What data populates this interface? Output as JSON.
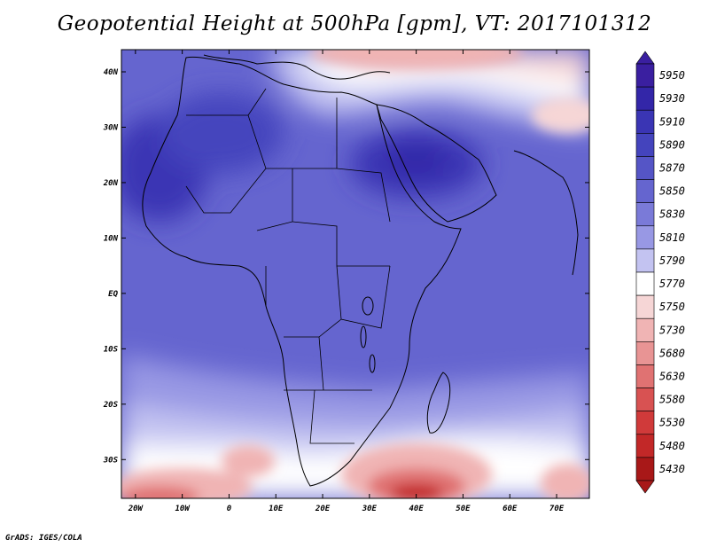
{
  "title": "Geopotential Height at 500hPa [gpm], VT: 2017101312",
  "credit": "GrADS: IGES/COLA",
  "map": {
    "lat_ticks": [
      "40N",
      "30N",
      "20N",
      "10N",
      "EQ",
      "10S",
      "20S",
      "30S"
    ],
    "lon_ticks": [
      "20W",
      "10W",
      "0",
      "10E",
      "20E",
      "30E",
      "40E",
      "50E",
      "60E",
      "70E"
    ],
    "lat_values": [
      40,
      30,
      20,
      10,
      0,
      -10,
      -20,
      -30
    ],
    "lon_values": [
      -20,
      -10,
      0,
      10,
      20,
      30,
      40,
      50,
      60,
      70
    ]
  },
  "colorbar": {
    "levels": [
      "5950",
      "5930",
      "5910",
      "5890",
      "5870",
      "5850",
      "5830",
      "5810",
      "5790",
      "5770",
      "5750",
      "5730",
      "5680",
      "5630",
      "5580",
      "5530",
      "5480",
      "5430"
    ],
    "colors": [
      "#3a1fa0",
      "#3326a8",
      "#3a35b4",
      "#4444bd",
      "#5555c6",
      "#6565cf",
      "#7a7ad8",
      "#9898e4",
      "#c3c3f1",
      "#ffffff",
      "#f6d6d6",
      "#f0b4b4",
      "#e89494",
      "#e07272",
      "#d85252",
      "#d03a3a",
      "#c22828",
      "#a81818"
    ]
  },
  "map_fill": {
    "base": "#6565cf",
    "ocean_south_pale": "#c3c3f1",
    "warm_band": "#f0b4b4",
    "red_core": "#c22828",
    "north_pink": "#f6d6d6",
    "dark_core": "#3a35b4",
    "coast": "#000000"
  }
}
